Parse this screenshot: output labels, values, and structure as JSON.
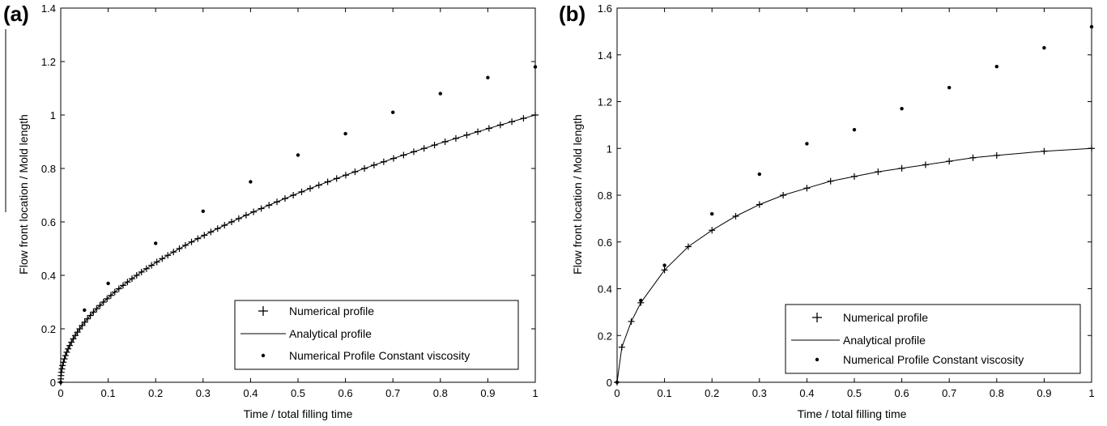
{
  "chart_data": [
    {
      "type": "line",
      "panel_label": "(a)",
      "xlabel": "Time / total filling time",
      "ylabel": "Flow front location / Mold length",
      "xlim": [
        0,
        1
      ],
      "ylim": [
        0,
        1.4
      ],
      "xticks": [
        "0",
        "0.1",
        "0.2",
        "0.3",
        "0.4",
        "0.5",
        "0.6",
        "0.7",
        "0.8",
        "0.9",
        "1"
      ],
      "yticks": [
        "0",
        "0.2",
        "0.4",
        "0.6",
        "0.8",
        "1",
        "1.2",
        "1.4"
      ],
      "grid": false,
      "legend_position": "bottom-right",
      "legend": [
        "Numerical profile",
        "Analytical profile",
        "Numerical Profile  Constant viscosity"
      ],
      "series": [
        {
          "name": "Numerical profile",
          "marker": "plus",
          "curve": "sqrt",
          "points": 80
        },
        {
          "name": "Analytical profile",
          "marker": "line",
          "curve": "sqrt"
        },
        {
          "name": "Numerical Profile  Constant viscosity",
          "marker": "dot",
          "x": [
            0,
            0.05,
            0.1,
            0.2,
            0.3,
            0.4,
            0.5,
            0.6,
            0.7,
            0.8,
            0.9,
            1.0
          ],
          "y": [
            0,
            0.27,
            0.37,
            0.52,
            0.64,
            0.75,
            0.85,
            0.93,
            1.01,
            1.08,
            1.14,
            1.18
          ]
        }
      ]
    },
    {
      "type": "line",
      "panel_label": "(b)",
      "xlabel": "Time / total filling time",
      "ylabel": "Flow front location / Mold length",
      "xlim": [
        0,
        1
      ],
      "ylim": [
        0,
        1.6
      ],
      "xticks": [
        "0",
        "0.1",
        "0.2",
        "0.3",
        "0.4",
        "0.5",
        "0.6",
        "0.7",
        "0.8",
        "0.9",
        "1"
      ],
      "yticks": [
        "0",
        "0.2",
        "0.4",
        "0.6",
        "0.8",
        "1",
        "1.2",
        "1.4",
        "1.6"
      ],
      "grid": false,
      "legend_position": "bottom-right",
      "legend": [
        "Numerical profile",
        "Analytical profile",
        "Numerical Profile  Constant viscosity"
      ],
      "series": [
        {
          "name": "Numerical profile",
          "marker": "plus",
          "x": [
            0,
            0.01,
            0.03,
            0.05,
            0.1,
            0.15,
            0.2,
            0.25,
            0.3,
            0.35,
            0.4,
            0.45,
            0.5,
            0.55,
            0.6,
            0.65,
            0.7,
            0.75,
            0.8,
            0.9,
            1.0
          ],
          "y": [
            0,
            0.15,
            0.26,
            0.34,
            0.48,
            0.58,
            0.65,
            0.71,
            0.76,
            0.8,
            0.83,
            0.86,
            0.88,
            0.9,
            0.915,
            0.93,
            0.945,
            0.96,
            0.97,
            0.988,
            1.0
          ]
        },
        {
          "name": "Analytical profile",
          "marker": "line",
          "x": [
            0,
            0.01,
            0.03,
            0.05,
            0.1,
            0.15,
            0.2,
            0.25,
            0.3,
            0.35,
            0.4,
            0.45,
            0.5,
            0.55,
            0.6,
            0.65,
            0.7,
            0.75,
            0.8,
            0.9,
            1.0
          ],
          "y": [
            0,
            0.15,
            0.26,
            0.34,
            0.48,
            0.58,
            0.65,
            0.71,
            0.76,
            0.8,
            0.83,
            0.86,
            0.88,
            0.9,
            0.915,
            0.93,
            0.945,
            0.96,
            0.97,
            0.988,
            1.0
          ]
        },
        {
          "name": "Numerical Profile  Constant viscosity",
          "marker": "dot",
          "x": [
            0,
            0.05,
            0.1,
            0.2,
            0.3,
            0.4,
            0.5,
            0.6,
            0.7,
            0.8,
            0.9,
            1.0
          ],
          "y": [
            0,
            0.35,
            0.5,
            0.72,
            0.89,
            1.02,
            1.08,
            1.17,
            1.26,
            1.35,
            1.43,
            1.52
          ]
        }
      ]
    }
  ]
}
